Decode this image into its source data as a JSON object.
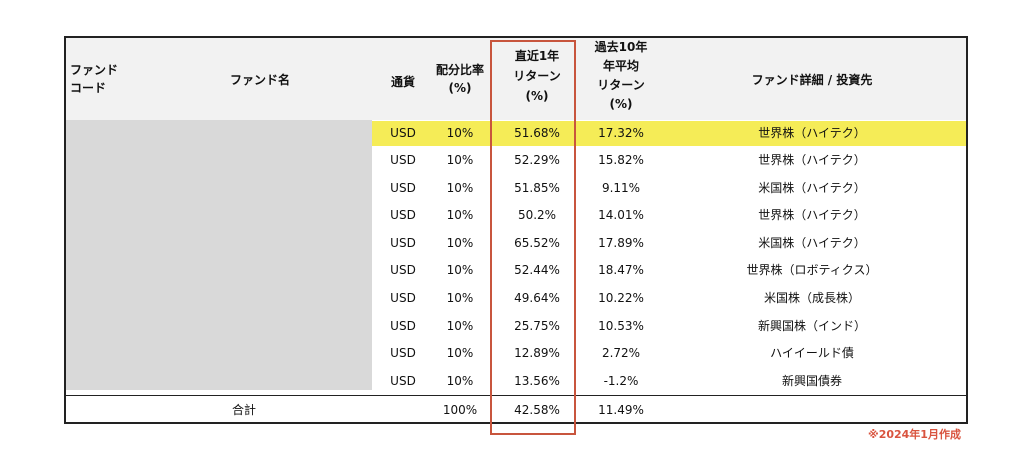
{
  "headers": {
    "fund_code": [
      "ファンド",
      "コード"
    ],
    "fund_name": "ファンド名",
    "currency": "通貨",
    "allocation": [
      "配分比率",
      "(%)"
    ],
    "return_1y": [
      "直近1年",
      "リターン",
      "(%)"
    ],
    "return_10y": [
      "過去10年",
      "年平均",
      "リターン",
      "(%)"
    ],
    "detail": "ファンド詳細 / 投資先"
  },
  "rows": [
    {
      "currency": "USD",
      "allocation": "10%",
      "return_1y": "51.68%",
      "return_10y": "17.32%",
      "detail": "世界株（ハイテク）"
    },
    {
      "currency": "USD",
      "allocation": "10%",
      "return_1y": "52.29%",
      "return_10y": "15.82%",
      "detail": "世界株（ハイテク）"
    },
    {
      "currency": "USD",
      "allocation": "10%",
      "return_1y": "51.85%",
      "return_10y": "9.11%",
      "detail": "米国株（ハイテク）"
    },
    {
      "currency": "USD",
      "allocation": "10%",
      "return_1y": "50.2%",
      "return_10y": "14.01%",
      "detail": "世界株（ハイテク）"
    },
    {
      "currency": "USD",
      "allocation": "10%",
      "return_1y": "65.52%",
      "return_10y": "17.89%",
      "detail": "米国株（ハイテク）"
    },
    {
      "currency": "USD",
      "allocation": "10%",
      "return_1y": "52.44%",
      "return_10y": "18.47%",
      "detail": "世界株（ロボティクス）"
    },
    {
      "currency": "USD",
      "allocation": "10%",
      "return_1y": "49.64%",
      "return_10y": "10.22%",
      "detail": "米国株（成長株）"
    },
    {
      "currency": "USD",
      "allocation": "10%",
      "return_1y": "25.75%",
      "return_10y": "10.53%",
      "detail": "新興国株（インド）"
    },
    {
      "currency": "USD",
      "allocation": "10%",
      "return_1y": "12.89%",
      "return_10y": "2.72%",
      "detail": "ハイイールド債"
    },
    {
      "currency": "USD",
      "allocation": "10%",
      "return_1y": "13.56%",
      "return_10y": "-1.2%",
      "detail": "新興国債券"
    }
  ],
  "total": {
    "label": "合計",
    "allocation": "100%",
    "return_1y": "42.58%",
    "return_10y": "11.49%"
  },
  "note": "※2024年1月作成",
  "colors": {
    "highlight_row": "#f5ec57",
    "highlight_box": "#c8553d",
    "note": "#d9543f",
    "redacted": "#d9d9d9"
  }
}
